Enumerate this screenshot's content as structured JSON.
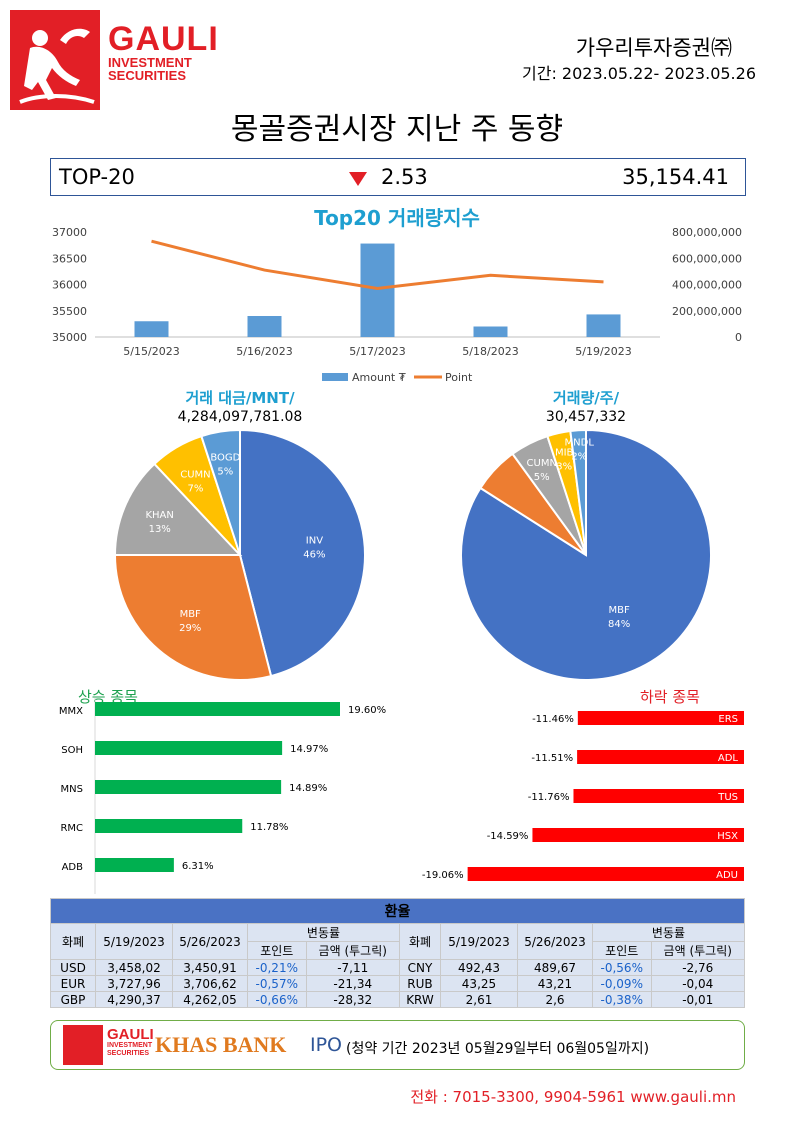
{
  "header": {
    "brand_name": "GAULI",
    "brand_sub1": "INVESTMENT",
    "brand_sub2": "SECURITIES",
    "company": "가우리투자증권㈜",
    "period": "기간: 2023.05.22- 2023.05.26"
  },
  "title": "몽골증권시장 지난 주 동향",
  "top20": {
    "label": "TOP-20",
    "direction": "down",
    "change": "2.53",
    "value": "35,154.41"
  },
  "chart_data": [
    {
      "type": "bar+line",
      "title": "Top20 거래량지수",
      "categories": [
        "5/15/2023",
        "5/16/2023",
        "5/17/2023",
        "5/18/2023",
        "5/19/2023"
      ],
      "left_axis_ticks": [
        "37000",
        "36500",
        "36000",
        "35500",
        "35000"
      ],
      "right_axis_ticks": [
        "800,000,000",
        "600,000,000",
        "400,000,000",
        "200,000,000",
        "0"
      ],
      "left_ylim": [
        35000,
        37000
      ],
      "right_ylim": [
        0,
        800000000
      ],
      "series": [
        {
          "name": "Amount ₮",
          "kind": "bar",
          "axis": "left",
          "color": "#5b9bd5",
          "values": [
            35300,
            35400,
            36780,
            35200,
            35430
          ]
        },
        {
          "name": "Point",
          "kind": "line",
          "axis": "right",
          "color": "#ed7d31",
          "values": [
            730000000,
            510000000,
            370000000,
            470000000,
            420000000
          ]
        }
      ],
      "legend_position": "bottom"
    },
    {
      "type": "pie",
      "title": "거래 대금/MNT/",
      "total": "4,284,097,781.08",
      "slices": [
        {
          "label": "INV",
          "pct": "46%",
          "value": 46,
          "color": "#4472c4"
        },
        {
          "label": "MBF",
          "pct": "29%",
          "value": 29,
          "color": "#ed7d31"
        },
        {
          "label": "KHAN",
          "pct": "13%",
          "value": 13,
          "color": "#a5a5a5"
        },
        {
          "label": "CUMN",
          "pct": "7%",
          "value": 7,
          "color": "#ffc000"
        },
        {
          "label": "BOGD",
          "pct": "5%",
          "value": 5,
          "color": "#5b9bd5"
        }
      ]
    },
    {
      "type": "pie",
      "title": "거래량/주/",
      "total": "30,457,332",
      "slices": [
        {
          "label": "MBF",
          "pct": "84%",
          "value": 84,
          "color": "#4472c4"
        },
        {
          "label": "",
          "pct": "",
          "value": 6,
          "color": "#ed7d31"
        },
        {
          "label": "CUMN",
          "pct": "5%",
          "value": 5,
          "color": "#a5a5a5"
        },
        {
          "label": "MIB",
          "pct": "3%",
          "value": 3,
          "color": "#ffc000"
        },
        {
          "label": "MNDL",
          "pct": "2%",
          "value": 2,
          "color": "#5b9bd5"
        }
      ]
    },
    {
      "type": "bar",
      "title": "상승 종목",
      "orientation": "horizontal",
      "color": "#00b050",
      "categories": [
        "MMX",
        "SOH",
        "MNS",
        "RMC",
        "ADB"
      ],
      "values": [
        19.6,
        14.97,
        14.89,
        11.78,
        6.31
      ],
      "labels": [
        "19.60%",
        "14.97%",
        "14.89%",
        "11.78%",
        "6.31%"
      ]
    },
    {
      "type": "bar",
      "title": "하락 종목",
      "orientation": "horizontal",
      "color": "#ff0000",
      "categories": [
        "ERS",
        "ADL",
        "TUS",
        "HSX",
        "ADU"
      ],
      "values": [
        -11.46,
        -11.51,
        -11.76,
        -14.59,
        -19.06
      ],
      "labels": [
        "-11.46%",
        "-11.51%",
        "-11.76%",
        "-14.59%",
        "-19.06%"
      ]
    }
  ],
  "fx": {
    "title": "환율",
    "h_currency": "화폐",
    "h_date1": "5/19/2023",
    "h_date2": "5/26/2023",
    "h_change": "변동률",
    "h_point": "포인트",
    "h_amount": "금액 (투그릭)",
    "rows": [
      {
        "l": [
          "USD",
          "3,458,02",
          "3,450,91",
          "-0,21%",
          "-7,11"
        ],
        "r": [
          "CNY",
          "492,43",
          "489,67",
          "-0,56%",
          "-2,76"
        ]
      },
      {
        "l": [
          "EUR",
          "3,727,96",
          "3,706,62",
          "-0,57%",
          "-21,34"
        ],
        "r": [
          "RUB",
          "43,25",
          "43,21",
          "-0,09%",
          "-0,04"
        ]
      },
      {
        "l": [
          "GBP",
          "4,290,37",
          "4,262,05",
          "-0,66%",
          "-28,32"
        ],
        "r": [
          "KRW",
          "2,61",
          "2,6",
          "-0,38%",
          "-0,01"
        ]
      }
    ]
  },
  "ipo": {
    "bank": "KHAS BANK",
    "ipo": "IPO",
    "period": "(청약 기간 2023년  05월29일부터  06월05일까지)"
  },
  "contact": "전화 : 7015-3300,  9904-5961  www.gauli.mn",
  "colors": {
    "brand_red": "#e21f26",
    "title_blue": "#1e9fd0",
    "frame_blue": "#2e5597"
  }
}
